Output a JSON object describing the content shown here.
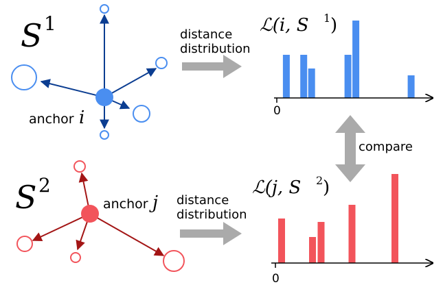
{
  "diagram": {
    "top": {
      "set": "S",
      "set_sup": "1",
      "anchor_word": "anchor",
      "anchor_var": "i",
      "arrow_line1": "distance",
      "arrow_line2": "distribution",
      "dist_label": "ℒ(i, S",
      "dist_sup": "1",
      "dist_close": ")",
      "axis_zero": "0",
      "color_edge": "#0b3d91",
      "color_node": "#4a8ef0",
      "color_bar": "#4a8ef0"
    },
    "bottom": {
      "set": "S",
      "set_sup": "2",
      "anchor_word": "anchor",
      "anchor_var": "j",
      "arrow_line1": "distance",
      "arrow_line2": "distribution",
      "dist_label": "ℒ(j, S",
      "dist_sup": "2",
      "dist_close": ")",
      "axis_zero": "0",
      "color_edge": "#a31515",
      "color_node": "#f2545b",
      "color_bar": "#f2545b"
    },
    "compare_label": "compare",
    "arrow_color": "#aaaaaa"
  },
  "chart_data": [
    {
      "type": "bar",
      "title": "ℒ(i, S¹)",
      "x_tick": "0",
      "x": [
        0.3,
        1.4,
        1.9,
        4.2,
        4.7,
        8.2
      ],
      "values": [
        63,
        63,
        43,
        63,
        113,
        33
      ],
      "ylim": [
        0,
        115
      ]
    },
    {
      "type": "bar",
      "title": "ℒ(j, S²)",
      "x_tick": "0",
      "x": [
        0.2,
        2.0,
        2.5,
        4.3,
        6.8
      ],
      "values": [
        65,
        38,
        60,
        85,
        130
      ],
      "ylim": [
        0,
        135
      ]
    }
  ]
}
